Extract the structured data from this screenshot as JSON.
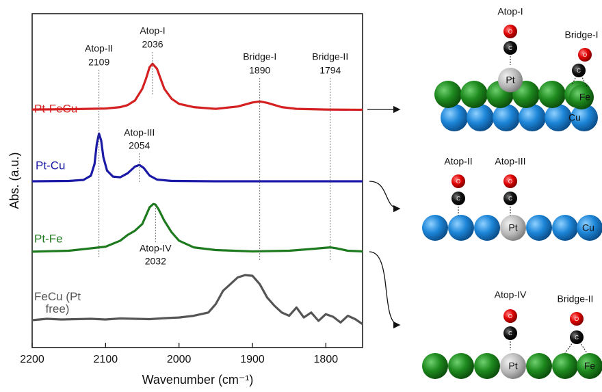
{
  "chart_data": {
    "type": "line",
    "xlabel": "Wavenumber (cm⁻¹)",
    "ylabel": "Abs. (a.u.)",
    "xlim": [
      2200,
      1750
    ],
    "xticks": [
      2200,
      2100,
      2000,
      1900,
      1800
    ],
    "ylim": [
      0,
      10
    ],
    "series": [
      {
        "name": "Pt-FeCu",
        "color": "#d42020",
        "x": [
          2200,
          2150,
          2100,
          2080,
          2070,
          2060,
          2050,
          2045,
          2040,
          2036,
          2030,
          2025,
          2020,
          2010,
          2000,
          1980,
          1950,
          1920,
          1900,
          1890,
          1880,
          1860,
          1840,
          1800,
          1750
        ],
        "values": [
          7.13,
          7.14,
          7.16,
          7.2,
          7.26,
          7.4,
          7.75,
          8.05,
          8.4,
          8.5,
          8.35,
          8.05,
          7.75,
          7.45,
          7.3,
          7.2,
          7.15,
          7.22,
          7.34,
          7.37,
          7.33,
          7.2,
          7.15,
          7.13,
          7.12
        ]
      },
      {
        "name": "Pt-Cu",
        "color": "#1a1aa6",
        "x": [
          2200,
          2150,
          2130,
          2120,
          2115,
          2112,
          2109,
          2106,
          2103,
          2098,
          2090,
          2080,
          2070,
          2060,
          2054,
          2048,
          2040,
          2030,
          2010,
          1950,
          1900,
          1850,
          1800,
          1750
        ],
        "values": [
          4.98,
          4.99,
          5.02,
          5.15,
          5.5,
          6.1,
          6.41,
          6.2,
          5.7,
          5.3,
          5.12,
          5.1,
          5.22,
          5.42,
          5.47,
          5.38,
          5.15,
          5.03,
          4.99,
          4.98,
          4.98,
          4.98,
          4.98,
          4.98
        ]
      },
      {
        "name": "Pt-Fe",
        "color": "#1e7a1e",
        "x": [
          2200,
          2150,
          2100,
          2080,
          2070,
          2060,
          2050,
          2045,
          2040,
          2035,
          2032,
          2028,
          2020,
          2010,
          2000,
          1980,
          1950,
          1900,
          1850,
          1820,
          1800,
          1794,
          1785,
          1770,
          1750
        ],
        "values": [
          2.87,
          2.9,
          3.02,
          3.2,
          3.37,
          3.5,
          3.7,
          3.95,
          4.2,
          4.3,
          4.28,
          4.15,
          3.8,
          3.45,
          3.2,
          3.0,
          2.92,
          2.88,
          2.9,
          2.95,
          2.99,
          3.0,
          2.97,
          2.9,
          2.88
        ]
      },
      {
        "name": "FeCu (Pt free)",
        "color": "#555555",
        "x": [
          2200,
          2180,
          2160,
          2140,
          2120,
          2100,
          2080,
          2060,
          2040,
          2020,
          2000,
          1980,
          1960,
          1950,
          1940,
          1930,
          1920,
          1910,
          1900,
          1890,
          1880,
          1870,
          1860,
          1850,
          1840,
          1830,
          1820,
          1810,
          1800,
          1790,
          1780,
          1770,
          1760,
          1750
        ],
        "values": [
          0.82,
          0.86,
          0.84,
          0.85,
          0.86,
          0.84,
          0.87,
          0.86,
          0.85,
          0.88,
          0.9,
          0.95,
          1.05,
          1.3,
          1.7,
          1.9,
          2.1,
          2.17,
          2.15,
          1.9,
          1.5,
          1.25,
          1.05,
          0.95,
          1.2,
          0.9,
          1.05,
          0.8,
          1.0,
          0.92,
          0.75,
          0.95,
          0.85,
          0.7
        ]
      }
    ],
    "annotations": [
      {
        "text": "Atop-II",
        "x": 2109
      },
      {
        "text": "Atop-I",
        "x": 2036
      },
      {
        "text": "Bridge-I",
        "x": 1890
      },
      {
        "text": "Bridge-II",
        "x": 1794
      },
      {
        "text": "Atop-III",
        "x": 2054
      },
      {
        "text": "Atop-IV",
        "x": 2032
      }
    ]
  },
  "diagrams": [
    {
      "sites": [
        "Atop-I",
        "Bridge-I"
      ],
      "atoms": [
        "Pt",
        "Fe",
        "Cu"
      ],
      "molecule": [
        "O",
        "C",
        "O",
        "C"
      ]
    },
    {
      "sites": [
        "Atop-II",
        "Atop-III"
      ],
      "atoms": [
        "Pt",
        "Cu"
      ],
      "molecule": [
        "O",
        "C",
        "O",
        "C"
      ]
    },
    {
      "sites": [
        "Atop-IV",
        "Bridge-II"
      ],
      "atoms": [
        "Pt",
        "Fe"
      ],
      "molecule": [
        "O",
        "C",
        "O",
        "C"
      ]
    }
  ]
}
